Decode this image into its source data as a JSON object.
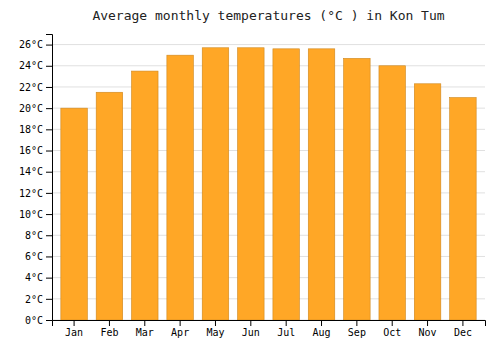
{
  "chart_data": {
    "type": "bar",
    "title": "Average monthly temperatures (°C ) in Kon Tum",
    "categories": [
      "Jan",
      "Feb",
      "Mar",
      "Apr",
      "May",
      "Jun",
      "Jul",
      "Aug",
      "Sep",
      "Oct",
      "Nov",
      "Dec"
    ],
    "values": [
      20.0,
      21.5,
      23.5,
      25.0,
      25.7,
      25.7,
      25.6,
      25.6,
      24.7,
      24.0,
      22.3,
      21.0
    ],
    "color": "#FFA726",
    "ylim": [
      0,
      27
    ],
    "yticks": [
      {
        "value": 0,
        "label": "0°C"
      },
      {
        "value": 2,
        "label": "2°C"
      },
      {
        "value": 4,
        "label": "4°C"
      },
      {
        "value": 6,
        "label": "6°C"
      },
      {
        "value": 8,
        "label": "8°C"
      },
      {
        "value": 10,
        "label": "10°C"
      },
      {
        "value": 12,
        "label": "12°C"
      },
      {
        "value": 14,
        "label": "14°C"
      },
      {
        "value": 16,
        "label": "16°C"
      },
      {
        "value": 18,
        "label": "18°C"
      },
      {
        "value": 20,
        "label": "20°C"
      },
      {
        "value": 22,
        "label": "22°C"
      },
      {
        "value": 24,
        "label": "24°C"
      },
      {
        "value": 26,
        "label": "26°C"
      }
    ],
    "grid": true
  }
}
